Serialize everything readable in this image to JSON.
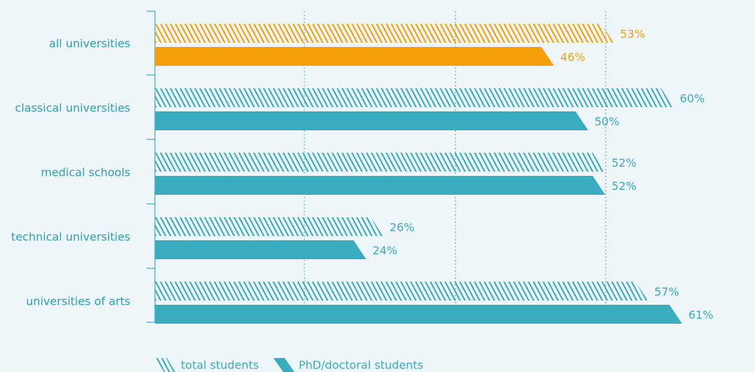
{
  "chart_data": {
    "type": "bar",
    "orientation": "horizontal",
    "categories": [
      "all universities",
      "classical universities",
      "medical schools",
      "technical universities",
      "universities of arts"
    ],
    "series": [
      {
        "name": "total students",
        "values": [
          53,
          60,
          52,
          26,
          57
        ],
        "value_labels": [
          "53%",
          "60%",
          "52%",
          "26%",
          "57%"
        ],
        "style": "hatched"
      },
      {
        "name": "PhD/doctoral students",
        "values": [
          46,
          50,
          52,
          24,
          61
        ],
        "value_labels": [
          "46%",
          "50%",
          "52%",
          "24%",
          "61%"
        ],
        "style": "solid"
      }
    ],
    "highlight_category": "all universities",
    "xlim": [
      0,
      63
    ],
    "gridlines_at": [
      17.5,
      35.2,
      52.8
    ],
    "grid": "dotted vertical",
    "legend_position": "bottom-left",
    "colors": {
      "default": "#3aacbf",
      "highlight": "#f5a00a",
      "category_text": "#2f9fb6",
      "background": "#eef6f9"
    }
  }
}
